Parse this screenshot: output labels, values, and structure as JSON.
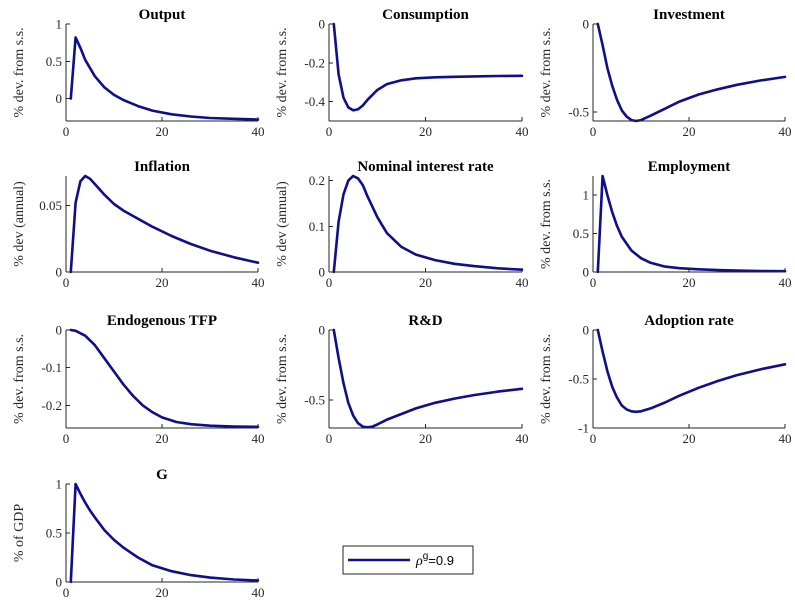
{
  "figure": {
    "line_color": "#0f0f8a",
    "legend": {
      "label": "=0.9",
      "symbol": "ρ",
      "superscript": "g"
    }
  },
  "chart_data": [
    {
      "type": "line",
      "title": "Output",
      "ylabel": "% dev. from s.s.",
      "xlabel": "",
      "xlim": [
        0,
        40
      ],
      "ylim": [
        -0.3,
        1
      ],
      "xticks": [
        0,
        20,
        40
      ],
      "yticks": [
        0,
        0.5,
        1
      ],
      "ytick_labels": [
        "0",
        "0.5",
        "1"
      ],
      "grid": false,
      "series": [
        {
          "x": [
            1,
            2,
            3,
            4,
            6,
            8,
            10,
            12,
            15,
            18,
            22,
            26,
            30,
            35,
            40
          ],
          "values": [
            0,
            0.82,
            0.68,
            0.52,
            0.3,
            0.15,
            0.05,
            -0.02,
            -0.1,
            -0.16,
            -0.21,
            -0.24,
            -0.26,
            -0.27,
            -0.28
          ]
        }
      ]
    },
    {
      "type": "line",
      "title": "Consumption",
      "ylabel": "% dev. from s.s.",
      "xlabel": "",
      "xlim": [
        0,
        40
      ],
      "ylim": [
        -0.5,
        0
      ],
      "xticks": [
        0,
        20,
        40
      ],
      "yticks": [
        -0.4,
        -0.2,
        0
      ],
      "ytick_labels": [
        "-0.4",
        "-0.2",
        "0"
      ],
      "grid": false,
      "series": [
        {
          "x": [
            1,
            2,
            3,
            4,
            5,
            6,
            7,
            8,
            10,
            12,
            15,
            18,
            22,
            26,
            30,
            35,
            40
          ],
          "values": [
            0,
            -0.26,
            -0.38,
            -0.43,
            -0.445,
            -0.44,
            -0.42,
            -0.39,
            -0.34,
            -0.31,
            -0.29,
            -0.28,
            -0.275,
            -0.272,
            -0.27,
            -0.268,
            -0.267
          ]
        }
      ]
    },
    {
      "type": "line",
      "title": "Investment",
      "ylabel": "% dev. from s.s.",
      "xlabel": "",
      "xlim": [
        0,
        40
      ],
      "ylim": [
        -0.55,
        0
      ],
      "xticks": [
        0,
        20,
        40
      ],
      "yticks": [
        -0.5,
        0
      ],
      "ytick_labels": [
        "-0.5",
        "0"
      ],
      "grid": false,
      "series": [
        {
          "x": [
            1,
            2,
            3,
            4,
            5,
            6,
            7,
            8,
            9,
            10,
            12,
            15,
            18,
            22,
            26,
            30,
            35,
            40
          ],
          "values": [
            0,
            -0.12,
            -0.25,
            -0.35,
            -0.43,
            -0.49,
            -0.525,
            -0.545,
            -0.55,
            -0.545,
            -0.52,
            -0.48,
            -0.44,
            -0.4,
            -0.37,
            -0.345,
            -0.32,
            -0.3
          ]
        }
      ]
    },
    {
      "type": "line",
      "title": "Inflation",
      "ylabel": "% dev (annual)",
      "xlabel": "",
      "xlim": [
        0,
        40
      ],
      "ylim": [
        0,
        0.072
      ],
      "xticks": [
        0,
        20,
        40
      ],
      "yticks": [
        0,
        0.05
      ],
      "ytick_labels": [
        "0",
        "0.05"
      ],
      "grid": false,
      "series": [
        {
          "x": [
            1,
            2,
            3,
            4,
            5,
            6,
            8,
            10,
            12,
            15,
            18,
            22,
            26,
            30,
            35,
            40
          ],
          "values": [
            0,
            0.052,
            0.068,
            0.072,
            0.07,
            0.066,
            0.058,
            0.051,
            0.046,
            0.04,
            0.034,
            0.027,
            0.021,
            0.016,
            0.011,
            0.007
          ]
        }
      ]
    },
    {
      "type": "line",
      "title": "Nominal interest rate",
      "ylabel": "% dev (annual)",
      "xlabel": "",
      "xlim": [
        0,
        40
      ],
      "ylim": [
        0,
        0.21
      ],
      "xticks": [
        0,
        20,
        40
      ],
      "yticks": [
        0,
        0.1,
        0.2
      ],
      "ytick_labels": [
        "0",
        "0.1",
        "0.2"
      ],
      "grid": false,
      "series": [
        {
          "x": [
            1,
            2,
            3,
            4,
            5,
            6,
            7,
            8,
            10,
            12,
            15,
            18,
            22,
            26,
            30,
            35,
            40
          ],
          "values": [
            0,
            0.11,
            0.17,
            0.2,
            0.21,
            0.205,
            0.19,
            0.165,
            0.12,
            0.085,
            0.055,
            0.038,
            0.026,
            0.018,
            0.013,
            0.008,
            0.005
          ]
        }
      ]
    },
    {
      "type": "line",
      "title": "Employment",
      "ylabel": "% dev. from s.s.",
      "xlabel": "",
      "xlim": [
        0,
        40
      ],
      "ylim": [
        0,
        1.25
      ],
      "xticks": [
        0,
        20,
        40
      ],
      "yticks": [
        0,
        0.5,
        1
      ],
      "ytick_labels": [
        "0",
        "0.5",
        "1"
      ],
      "grid": false,
      "series": [
        {
          "x": [
            1,
            2,
            3,
            4,
            5,
            6,
            8,
            10,
            12,
            15,
            18,
            22,
            26,
            30,
            35,
            40
          ],
          "values": [
            0,
            1.25,
            1.0,
            0.78,
            0.6,
            0.46,
            0.28,
            0.18,
            0.12,
            0.07,
            0.05,
            0.035,
            0.025,
            0.018,
            0.013,
            0.01
          ]
        }
      ]
    },
    {
      "type": "line",
      "title": "Endogenous TFP",
      "ylabel": "% dev. from s.s.",
      "xlabel": "",
      "xlim": [
        0,
        40
      ],
      "ylim": [
        -0.26,
        0
      ],
      "xticks": [
        0,
        20,
        40
      ],
      "yticks": [
        -0.2,
        -0.1,
        0
      ],
      "ytick_labels": [
        "-0.2",
        "-0.1",
        "0"
      ],
      "grid": false,
      "series": [
        {
          "x": [
            1,
            2,
            4,
            6,
            8,
            10,
            12,
            14,
            16,
            18,
            20,
            23,
            26,
            30,
            35,
            40
          ],
          "values": [
            0,
            -0.002,
            -0.015,
            -0.04,
            -0.075,
            -0.11,
            -0.145,
            -0.175,
            -0.2,
            -0.218,
            -0.232,
            -0.244,
            -0.25,
            -0.254,
            -0.256,
            -0.257
          ]
        }
      ]
    },
    {
      "type": "line",
      "title": "R&D",
      "ylabel": "% dev. from s.s.",
      "xlabel": "",
      "xlim": [
        0,
        40
      ],
      "ylim": [
        -0.7,
        0
      ],
      "xticks": [
        0,
        20,
        40
      ],
      "yticks": [
        -0.5,
        0
      ],
      "ytick_labels": [
        "-0.5",
        "0"
      ],
      "grid": false,
      "series": [
        {
          "x": [
            1,
            2,
            3,
            4,
            5,
            6,
            7,
            8,
            9,
            10,
            12,
            15,
            18,
            22,
            26,
            30,
            35,
            40
          ],
          "values": [
            0,
            -0.2,
            -0.38,
            -0.52,
            -0.61,
            -0.665,
            -0.69,
            -0.695,
            -0.69,
            -0.675,
            -0.64,
            -0.6,
            -0.56,
            -0.52,
            -0.49,
            -0.465,
            -0.44,
            -0.42
          ]
        }
      ]
    },
    {
      "type": "line",
      "title": "Adoption rate",
      "ylabel": "% dev. from s.s.",
      "xlabel": "",
      "xlim": [
        0,
        40
      ],
      "ylim": [
        -1,
        0
      ],
      "xticks": [
        0,
        20,
        40
      ],
      "yticks": [
        -1,
        -0.5,
        0
      ],
      "ytick_labels": [
        "-1",
        "-0.5",
        "0"
      ],
      "grid": false,
      "series": [
        {
          "x": [
            1,
            2,
            3,
            4,
            5,
            6,
            7,
            8,
            9,
            10,
            12,
            15,
            18,
            22,
            26,
            30,
            35,
            40
          ],
          "values": [
            0,
            -0.22,
            -0.42,
            -0.58,
            -0.69,
            -0.77,
            -0.81,
            -0.83,
            -0.835,
            -0.83,
            -0.8,
            -0.74,
            -0.67,
            -0.59,
            -0.52,
            -0.46,
            -0.4,
            -0.35
          ]
        }
      ]
    },
    {
      "type": "line",
      "title": "G",
      "ylabel": "% of GDP",
      "xlabel": "",
      "xlim": [
        0,
        40
      ],
      "ylim": [
        0,
        1
      ],
      "xticks": [
        0,
        20,
        40
      ],
      "yticks": [
        0,
        0.5,
        1
      ],
      "ytick_labels": [
        "0",
        "0.5",
        "1"
      ],
      "grid": false,
      "series": [
        {
          "x": [
            1,
            2,
            3,
            4,
            5,
            6,
            8,
            10,
            12,
            15,
            18,
            22,
            26,
            30,
            35,
            40
          ],
          "values": [
            0,
            1,
            0.9,
            0.81,
            0.73,
            0.66,
            0.53,
            0.43,
            0.35,
            0.25,
            0.17,
            0.11,
            0.07,
            0.045,
            0.025,
            0.015
          ]
        }
      ]
    }
  ]
}
